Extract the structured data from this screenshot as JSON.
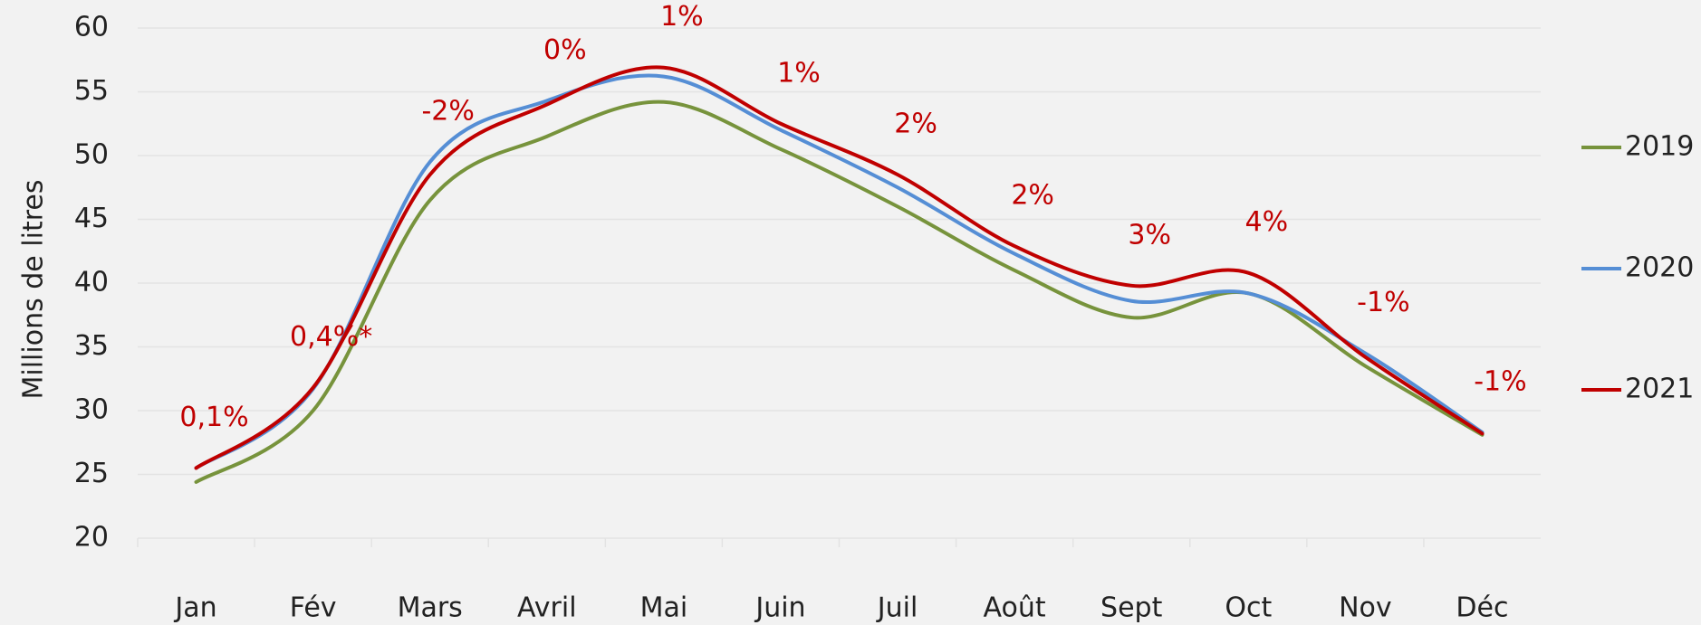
{
  "chart_data": {
    "type": "line",
    "y_label": "Millions de litres",
    "categories": [
      "Jan",
      "Fév",
      "Mars",
      "Avril",
      "Mai",
      "Juin",
      "Juil",
      "Août",
      "Sept",
      "Oct",
      "Nov",
      "Déc"
    ],
    "series": [
      {
        "name": "2019",
        "color": "#77933c",
        "values": [
          24.4,
          30,
          46.5,
          51.5,
          54.2,
          50.5,
          46,
          41,
          37.3,
          39.2,
          33.5,
          28.1
        ]
      },
      {
        "name": "2020",
        "color": "#558ed5",
        "values": [
          25.5,
          31.7,
          49.5,
          54.3,
          56.2,
          52,
          47.5,
          42.3,
          38.6,
          39.2,
          34.5,
          28.3
        ]
      },
      {
        "name": "2021",
        "color": "#c00000",
        "values": [
          25.5,
          31.8,
          48.5,
          54,
          56.9,
          52.5,
          48.5,
          42.9,
          39.8,
          40.8,
          34.2,
          28.2
        ]
      }
    ],
    "annotations": [
      "0,1%",
      "0,4%*",
      "-2%",
      "0%",
      "1%",
      "1%",
      "2%",
      "2%",
      "3%",
      "4%",
      "-1%",
      "-1%"
    ],
    "ylim": [
      20,
      60
    ],
    "yticks": [
      20,
      25,
      30,
      35,
      40,
      45,
      50,
      55,
      60
    ],
    "grid": true,
    "legend": "right"
  }
}
